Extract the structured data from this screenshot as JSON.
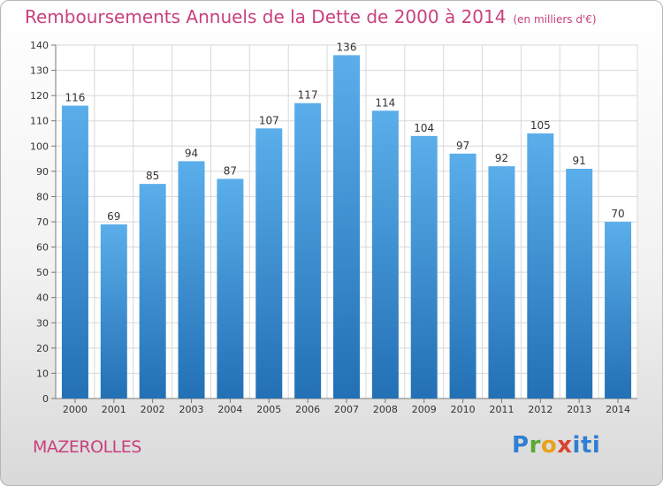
{
  "header": {
    "title": "Remboursements Annuels de la Dette de 2000 à 2014",
    "subtitle": "(en milliers d'€)"
  },
  "footer": {
    "commune": "MAZEROLLES",
    "logo_text": "Proxiti"
  },
  "colors": {
    "title": "#c8417e",
    "bar_top": "#5aaeea",
    "bar_bottom": "#2370b5",
    "grid": "#d8d8d8"
  },
  "chart_data": {
    "type": "bar",
    "title": "Remboursements Annuels de la Dette de 2000 à 2014",
    "subtitle": "(en milliers d'€)",
    "xlabel": "",
    "ylabel": "",
    "categories": [
      "2000",
      "2001",
      "2002",
      "2003",
      "2004",
      "2005",
      "2006",
      "2007",
      "2008",
      "2009",
      "2010",
      "2011",
      "2012",
      "2013",
      "2014"
    ],
    "values": [
      116,
      69,
      85,
      94,
      87,
      107,
      117,
      136,
      114,
      104,
      97,
      92,
      105,
      91,
      70
    ],
    "ylim": [
      0,
      140
    ],
    "yticks": [
      0,
      10,
      20,
      30,
      40,
      50,
      60,
      70,
      80,
      90,
      100,
      110,
      120,
      130,
      140
    ],
    "grid": true,
    "legend": "none"
  }
}
